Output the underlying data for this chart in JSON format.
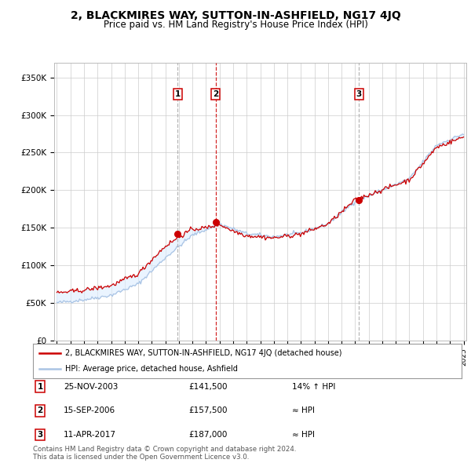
{
  "title": "2, BLACKMIRES WAY, SUTTON-IN-ASHFIELD, NG17 4JQ",
  "subtitle": "Price paid vs. HM Land Registry's House Price Index (HPI)",
  "title_fontsize": 10,
  "subtitle_fontsize": 8.5,
  "ylim": [
    0,
    370000
  ],
  "yticks": [
    0,
    50000,
    100000,
    150000,
    200000,
    250000,
    300000,
    350000
  ],
  "ytick_labels": [
    "£0",
    "£50K",
    "£100K",
    "£150K",
    "£200K",
    "£250K",
    "£300K",
    "£350K"
  ],
  "hpi_color": "#aac4e4",
  "hpi_fill_color": "#ddeeff",
  "price_color": "#cc0000",
  "grid_color": "#cccccc",
  "background_color": "#ffffff",
  "sale_year_nums": [
    2003.9,
    2006.71,
    2017.28
  ],
  "sale_prices": [
    141500,
    157500,
    187000
  ],
  "sale_labels": [
    "1",
    "2",
    "3"
  ],
  "sale_line_styles": [
    "--",
    "--",
    "--"
  ],
  "sale_line_colors": [
    "#aaaaaa",
    "#cc0000",
    "#aaaaaa"
  ],
  "transactions": [
    {
      "label": "1",
      "date": "25-NOV-2003",
      "price": "£141,500",
      "vs_hpi": "14% ↑ HPI"
    },
    {
      "label": "2",
      "date": "15-SEP-2006",
      "price": "£157,500",
      "vs_hpi": "≈ HPI"
    },
    {
      "label": "3",
      "date": "11-APR-2017",
      "price": "£187,000",
      "vs_hpi": "≈ HPI"
    }
  ],
  "legend_line1": "2, BLACKMIRES WAY, SUTTON-IN-ASHFIELD, NG17 4JQ (detached house)",
  "legend_line2": "HPI: Average price, detached house, Ashfield",
  "footer": "Contains HM Land Registry data © Crown copyright and database right 2024.\nThis data is licensed under the Open Government Licence v3.0.",
  "x_start_year": 1995,
  "x_end_year": 2025
}
